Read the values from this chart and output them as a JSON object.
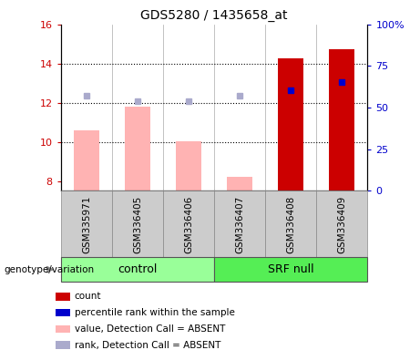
{
  "title": "GDS5280 / 1435658_at",
  "samples": [
    "GSM335971",
    "GSM336405",
    "GSM336406",
    "GSM336407",
    "GSM336408",
    "GSM336409"
  ],
  "ylim_left": [
    7.5,
    16
  ],
  "ylim_right": [
    0,
    100
  ],
  "yticks_left": [
    8,
    10,
    12,
    14,
    16
  ],
  "yticks_right": [
    0,
    25,
    50,
    75,
    100
  ],
  "ytick_labels_right": [
    "0",
    "25",
    "50",
    "75",
    "100%"
  ],
  "bar_values_absent": [
    10.6,
    11.8,
    10.05,
    8.2,
    null,
    null
  ],
  "bar_values_present": [
    null,
    null,
    null,
    null,
    14.25,
    14.75
  ],
  "rank_dots_absent": [
    12.35,
    12.1,
    12.1,
    12.35,
    null,
    null
  ],
  "rank_dots_present": [
    null,
    null,
    null,
    null,
    12.65,
    13.05
  ],
  "color_bar_absent": "#ffb3b3",
  "color_bar_present": "#cc0000",
  "color_rank_absent": "#aaaacc",
  "color_rank_present": "#0000cc",
  "group_control_color": "#99ff99",
  "group_srf_color": "#55ee55",
  "legend_items": [
    {
      "label": "count",
      "color": "#cc0000"
    },
    {
      "label": "percentile rank within the sample",
      "color": "#0000cc"
    },
    {
      "label": "value, Detection Call = ABSENT",
      "color": "#ffb3b3"
    },
    {
      "label": "rank, Detection Call = ABSENT",
      "color": "#aaaacc"
    }
  ],
  "background_color": "#ffffff",
  "label_color_left": "#cc0000",
  "label_color_right": "#0000cc",
  "bar_width": 0.5,
  "gridline_values": [
    10,
    12,
    14
  ]
}
